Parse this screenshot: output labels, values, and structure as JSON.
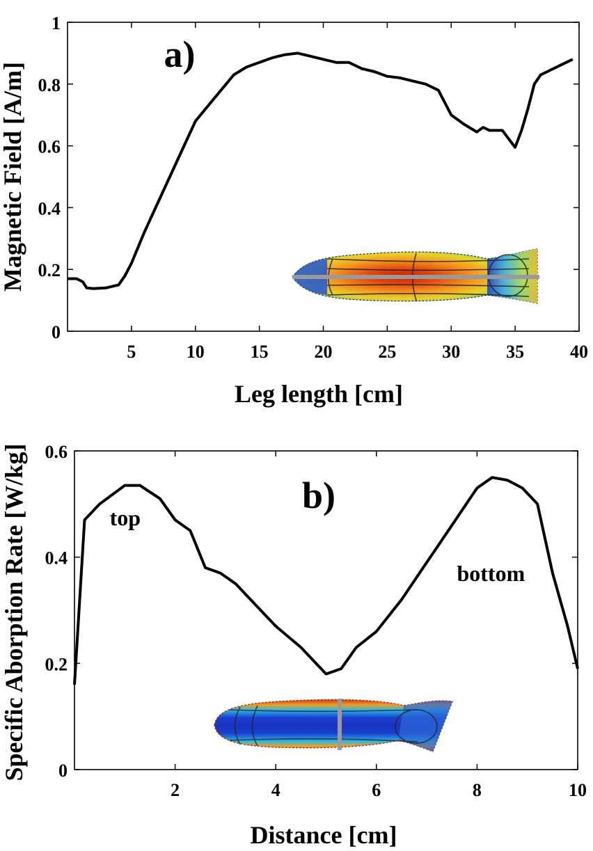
{
  "chart_data": [
    {
      "type": "line",
      "panel_label": "a)",
      "title": "",
      "xlabel": "Leg length [cm]",
      "ylabel": "Magnetic Field [A/m]",
      "xlim": [
        0,
        40
      ],
      "ylim": [
        0,
        1
      ],
      "xticks": [
        5,
        10,
        15,
        20,
        25,
        30,
        35,
        40
      ],
      "yticks": [
        0,
        0.2,
        0.4,
        0.6,
        0.8,
        1
      ],
      "ytick_labels": [
        "0",
        "0.2",
        "0.4",
        "0.6",
        "0.8",
        "1"
      ],
      "legend": "none",
      "grid": false,
      "inset": "leg model colormap (horizontal line sample)",
      "series": [
        {
          "name": "Magnetic Field",
          "color": "#000000",
          "x": [
            0,
            0.7,
            1.2,
            1.5,
            2.0,
            3.0,
            3.5,
            4.0,
            4.5,
            5.0,
            6.0,
            7.0,
            8.0,
            9.0,
            10.0,
            11.0,
            12.0,
            13.0,
            14.0,
            15.0,
            16.0,
            17.0,
            18.0,
            19.0,
            20.0,
            21.0,
            22.0,
            23.0,
            24.0,
            25.0,
            26.0,
            27.0,
            28.0,
            29.0,
            30.0,
            31.0,
            32.0,
            32.5,
            33.0,
            34.0,
            35.0,
            35.5,
            36.0,
            36.5,
            37.0,
            38.0,
            39.0,
            39.5
          ],
          "y": [
            0.17,
            0.17,
            0.16,
            0.14,
            0.138,
            0.14,
            0.145,
            0.15,
            0.18,
            0.22,
            0.32,
            0.41,
            0.5,
            0.59,
            0.68,
            0.73,
            0.78,
            0.83,
            0.855,
            0.87,
            0.885,
            0.895,
            0.9,
            0.89,
            0.88,
            0.87,
            0.87,
            0.85,
            0.84,
            0.825,
            0.82,
            0.81,
            0.8,
            0.78,
            0.7,
            0.67,
            0.645,
            0.66,
            0.65,
            0.65,
            0.595,
            0.65,
            0.72,
            0.8,
            0.83,
            0.85,
            0.87,
            0.88
          ]
        }
      ]
    },
    {
      "type": "line",
      "panel_label": "b)",
      "title": "",
      "xlabel": "Distance [cm]",
      "ylabel": "Specific Aborption Rate [W/kg]",
      "xlim": [
        0,
        10
      ],
      "ylim": [
        0,
        0.6
      ],
      "xticks": [
        2,
        4,
        6,
        8,
        10
      ],
      "yticks": [
        0,
        0.2,
        0.4,
        0.6
      ],
      "ytick_labels": [
        "0",
        "0.2",
        "0.4",
        "0.6"
      ],
      "legend": "none",
      "grid": false,
      "annotations": [
        {
          "text": "top",
          "x": 0.7,
          "y": 0.46
        },
        {
          "text": "bottom",
          "x": 7.6,
          "y": 0.355
        }
      ],
      "inset": "leg model colormap (vertical line sample)",
      "series": [
        {
          "name": "Specific Absorption Rate",
          "color": "#000000",
          "x": [
            0,
            0.2,
            0.5,
            1.0,
            1.3,
            1.7,
            2.0,
            2.3,
            2.6,
            2.9,
            3.2,
            3.6,
            4.0,
            4.5,
            5.0,
            5.3,
            5.6,
            6.0,
            6.5,
            7.0,
            7.5,
            8.0,
            8.3,
            8.6,
            8.9,
            9.2,
            9.5,
            9.8,
            10.0
          ],
          "y": [
            0.16,
            0.47,
            0.5,
            0.535,
            0.535,
            0.51,
            0.47,
            0.45,
            0.38,
            0.37,
            0.35,
            0.31,
            0.27,
            0.23,
            0.18,
            0.19,
            0.23,
            0.26,
            0.32,
            0.39,
            0.46,
            0.53,
            0.55,
            0.545,
            0.53,
            0.5,
            0.37,
            0.27,
            0.19
          ]
        }
      ]
    }
  ]
}
